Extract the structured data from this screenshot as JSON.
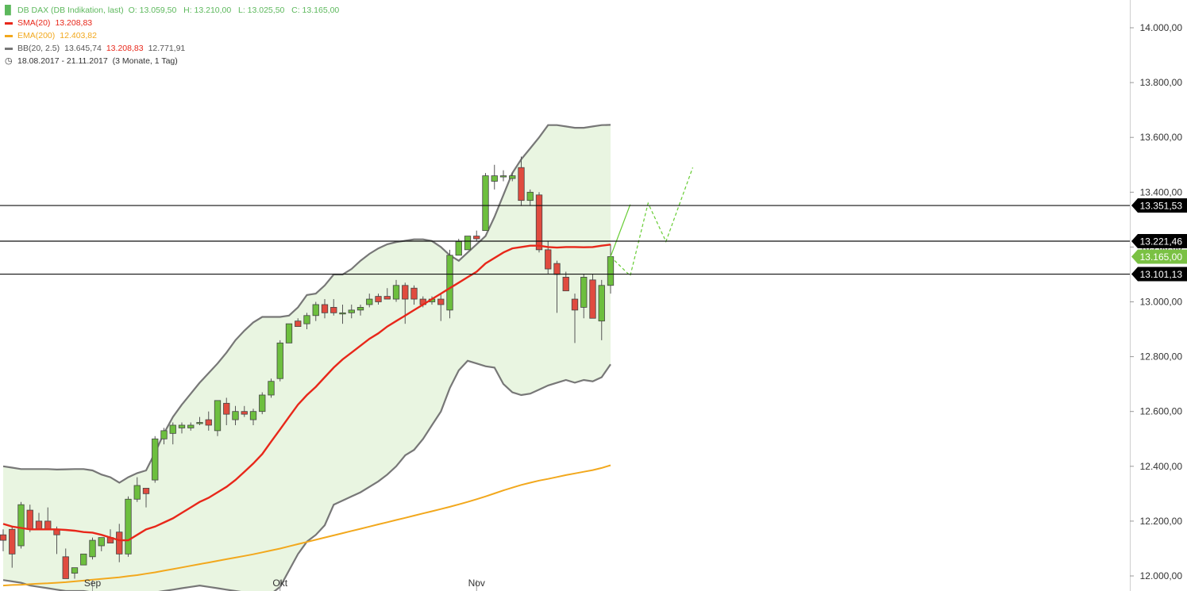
{
  "legend": {
    "instrument": {
      "name": "DB DAX (DB Indikation, last)",
      "ohlc": "O: 13.059,50   H: 13.210,00   L: 13.025,50   C: 13.165,00",
      "color": "#5cb85c"
    },
    "sma": {
      "label": "SMA(20)",
      "value": "13.208,83",
      "color": "#e8271a"
    },
    "ema": {
      "label": "EMA(200)",
      "value": "12.403,82",
      "color": "#f2a81d"
    },
    "bb": {
      "label": "BB(20, 2.5)",
      "upper": "13.645,74",
      "middle": "13.208,83",
      "lower": "12.771,91",
      "color": "#777777"
    },
    "period": {
      "range": "18.08.2017 - 21.11.2017",
      "span": "(3 Monate, 1 Tag)"
    }
  },
  "chart_data": {
    "type": "candlestick",
    "y_range": [
      11950,
      14120
    ],
    "y_ticks": [
      {
        "value": 12000,
        "label": "12.000,00"
      },
      {
        "value": 12200,
        "label": "12.200,00"
      },
      {
        "value": 12400,
        "label": "12.400,00"
      },
      {
        "value": 12600,
        "label": "12.600,00"
      },
      {
        "value": 12800,
        "label": "12.800,00"
      },
      {
        "value": 13000,
        "label": "13.000,00"
      },
      {
        "value": 13200,
        "label": "13.200,00"
      },
      {
        "value": 13400,
        "label": "13.400,00"
      },
      {
        "value": 13600,
        "label": "13.600,00"
      },
      {
        "value": 13800,
        "label": "13.800,00"
      },
      {
        "value": 14000,
        "label": "14.000,00"
      }
    ],
    "x_labels": [
      {
        "index": 10,
        "label": "Sep"
      },
      {
        "index": 31,
        "label": "Okt"
      },
      {
        "index": 53,
        "label": "Nov"
      }
    ],
    "candles": [
      {
        "o": 12150,
        "h": 12170,
        "l": 12090,
        "c": 12130
      },
      {
        "o": 12170,
        "h": 12180,
        "l": 12030,
        "c": 12080
      },
      {
        "o": 12110,
        "h": 12270,
        "l": 12100,
        "c": 12260
      },
      {
        "o": 12240,
        "h": 12260,
        "l": 12160,
        "c": 12170
      },
      {
        "o": 12200,
        "h": 12230,
        "l": 12170,
        "c": 12170
      },
      {
        "o": 12200,
        "h": 12250,
        "l": 12170,
        "c": 12170
      },
      {
        "o": 12170,
        "h": 12180,
        "l": 12080,
        "c": 12150
      },
      {
        "o": 12070,
        "h": 12100,
        "l": 11990,
        "c": 11990
      },
      {
        "o": 12010,
        "h": 12030,
        "l": 11990,
        "c": 12030
      },
      {
        "o": 12040,
        "h": 12080,
        "l": 12040,
        "c": 12080
      },
      {
        "o": 12070,
        "h": 12140,
        "l": 12060,
        "c": 12130
      },
      {
        "o": 12110,
        "h": 12140,
        "l": 12090,
        "c": 12140
      },
      {
        "o": 12140,
        "h": 12170,
        "l": 12130,
        "c": 12120
      },
      {
        "o": 12160,
        "h": 12190,
        "l": 12050,
        "c": 12080
      },
      {
        "o": 12080,
        "h": 12290,
        "l": 12070,
        "c": 12280
      },
      {
        "o": 12280,
        "h": 12360,
        "l": 12270,
        "c": 12330
      },
      {
        "o": 12320,
        "h": 12320,
        "l": 12250,
        "c": 12300
      },
      {
        "o": 12350,
        "h": 12510,
        "l": 12340,
        "c": 12500
      },
      {
        "o": 12500,
        "h": 12540,
        "l": 12480,
        "c": 12530
      },
      {
        "o": 12520,
        "h": 12560,
        "l": 12480,
        "c": 12550
      },
      {
        "o": 12540,
        "h": 12560,
        "l": 12520,
        "c": 12550
      },
      {
        "o": 12540,
        "h": 12560,
        "l": 12530,
        "c": 12550
      },
      {
        "o": 12560,
        "h": 12580,
        "l": 12550,
        "c": 12560
      },
      {
        "o": 12570,
        "h": 12600,
        "l": 12530,
        "c": 12550
      },
      {
        "o": 12530,
        "h": 12640,
        "l": 12510,
        "c": 12640
      },
      {
        "o": 12630,
        "h": 12650,
        "l": 12550,
        "c": 12590
      },
      {
        "o": 12570,
        "h": 12620,
        "l": 12550,
        "c": 12600
      },
      {
        "o": 12600,
        "h": 12620,
        "l": 12580,
        "c": 12590
      },
      {
        "o": 12570,
        "h": 12610,
        "l": 12550,
        "c": 12600
      },
      {
        "o": 12600,
        "h": 12670,
        "l": 12590,
        "c": 12660
      },
      {
        "o": 12660,
        "h": 12720,
        "l": 12650,
        "c": 12710
      },
      {
        "o": 12720,
        "h": 12860,
        "l": 12710,
        "c": 12850
      },
      {
        "o": 12850,
        "h": 12920,
        "l": 12850,
        "c": 12920
      },
      {
        "o": 12930,
        "h": 12940,
        "l": 12910,
        "c": 12910
      },
      {
        "o": 12920,
        "h": 12960,
        "l": 12900,
        "c": 12950
      },
      {
        "o": 12950,
        "h": 13000,
        "l": 12930,
        "c": 12990
      },
      {
        "o": 12990,
        "h": 13010,
        "l": 12940,
        "c": 12960
      },
      {
        "o": 12980,
        "h": 13010,
        "l": 12950,
        "c": 12960
      },
      {
        "o": 12960,
        "h": 12990,
        "l": 12920,
        "c": 12960
      },
      {
        "o": 12960,
        "h": 12990,
        "l": 12940,
        "c": 12970
      },
      {
        "o": 12970,
        "h": 12990,
        "l": 12950,
        "c": 12980
      },
      {
        "o": 12990,
        "h": 13030,
        "l": 12980,
        "c": 13010
      },
      {
        "o": 13020,
        "h": 13030,
        "l": 12990,
        "c": 13000
      },
      {
        "o": 13020,
        "h": 13050,
        "l": 13010,
        "c": 13010
      },
      {
        "o": 13010,
        "h": 13080,
        "l": 13000,
        "c": 13060
      },
      {
        "o": 13060,
        "h": 13070,
        "l": 12920,
        "c": 13010
      },
      {
        "o": 13050,
        "h": 13060,
        "l": 12990,
        "c": 13010
      },
      {
        "o": 13010,
        "h": 13020,
        "l": 12980,
        "c": 12990
      },
      {
        "o": 13000,
        "h": 13020,
        "l": 12990,
        "c": 13010
      },
      {
        "o": 13010,
        "h": 13030,
        "l": 12930,
        "c": 12990
      },
      {
        "o": 12970,
        "h": 13190,
        "l": 12940,
        "c": 13170
      },
      {
        "o": 13170,
        "h": 13230,
        "l": 13170,
        "c": 13220
      },
      {
        "o": 13190,
        "h": 13240,
        "l": 13190,
        "c": 13240
      },
      {
        "o": 13240,
        "h": 13260,
        "l": 13220,
        "c": 13230
      },
      {
        "o": 13260,
        "h": 13470,
        "l": 13260,
        "c": 13460
      },
      {
        "o": 13440,
        "h": 13500,
        "l": 13410,
        "c": 13460
      },
      {
        "o": 13460,
        "h": 13480,
        "l": 13440,
        "c": 13460
      },
      {
        "o": 13450,
        "h": 13470,
        "l": 13440,
        "c": 13460
      },
      {
        "o": 13490,
        "h": 13530,
        "l": 13350,
        "c": 13370
      },
      {
        "o": 13370,
        "h": 13410,
        "l": 13350,
        "c": 13400
      },
      {
        "o": 13390,
        "h": 13400,
        "l": 13180,
        "c": 13190
      },
      {
        "o": 13190,
        "h": 13220,
        "l": 13100,
        "c": 13120
      },
      {
        "o": 13140,
        "h": 13150,
        "l": 12960,
        "c": 13100
      },
      {
        "o": 13090,
        "h": 13110,
        "l": 13040,
        "c": 13040
      },
      {
        "o": 13010,
        "h": 13030,
        "l": 12850,
        "c": 12970
      },
      {
        "o": 12980,
        "h": 13100,
        "l": 12940,
        "c": 13090
      },
      {
        "o": 13080,
        "h": 13100,
        "l": 12940,
        "c": 12940
      },
      {
        "o": 12930,
        "h": 13080,
        "l": 12860,
        "c": 13060
      },
      {
        "o": 13060,
        "h": 13210,
        "l": 13030,
        "c": 13165
      }
    ],
    "sma20": [
      12190,
      12180,
      12175,
      12170,
      12170,
      12170,
      12170,
      12168,
      12165,
      12160,
      12158,
      12150,
      12140,
      12130,
      12130,
      12150,
      12170,
      12180,
      12195,
      12210,
      12230,
      12250,
      12270,
      12285,
      12305,
      12325,
      12350,
      12380,
      12410,
      12445,
      12490,
      12535,
      12580,
      12625,
      12660,
      12690,
      12725,
      12760,
      12790,
      12815,
      12840,
      12865,
      12885,
      12910,
      12930,
      12950,
      12970,
      12990,
      13010,
      13030,
      13050,
      13070,
      13090,
      13110,
      13140,
      13160,
      13180,
      13195,
      13200,
      13205,
      13205,
      13200,
      13198,
      13200,
      13200,
      13199,
      13200,
      13205,
      13208.83
    ],
    "ema200": [
      11965,
      11967,
      11968,
      11970,
      11972,
      11973,
      11975,
      11977,
      11980,
      11983,
      11986,
      11989,
      11992,
      11995,
      11999,
      12003,
      12008,
      12013,
      12019,
      12025,
      12031,
      12037,
      12043,
      12049,
      12055,
      12061,
      12067,
      12073,
      12079,
      12086,
      12093,
      12100,
      12108,
      12116,
      12124,
      12132,
      12140,
      12148,
      12156,
      12164,
      12172,
      12180,
      12188,
      12196,
      12204,
      12212,
      12220,
      12228,
      12236,
      12244,
      12252,
      12261,
      12270,
      12280,
      12290,
      12301,
      12312,
      12322,
      12332,
      12340,
      12348,
      12354,
      12361,
      12368,
      12374,
      12380,
      12386,
      12394,
      12403.82
    ],
    "bb_upper": [
      12400,
      12395,
      12390,
      12390,
      12390,
      12390,
      12388,
      12389,
      12390,
      12390,
      12385,
      12370,
      12360,
      12340,
      12360,
      12375,
      12385,
      12450,
      12520,
      12580,
      12625,
      12665,
      12705,
      12740,
      12775,
      12815,
      12860,
      12895,
      12925,
      12945,
      12945,
      12945,
      12950,
      12980,
      13025,
      13030,
      13060,
      13100,
      13100,
      13120,
      13150,
      13175,
      13195,
      13210,
      13218,
      13223,
      13228,
      13228,
      13222,
      13200,
      13170,
      13150,
      13180,
      13210,
      13240,
      13310,
      13390,
      13470,
      13520,
      13560,
      13600,
      13645,
      13645,
      13640,
      13635,
      13635,
      13640,
      13645,
      13645.74
    ],
    "bb_lower": [
      11985,
      11980,
      11975,
      11965,
      11960,
      11955,
      11950,
      11945,
      11945,
      11945,
      11940,
      11930,
      11920,
      11910,
      11910,
      11920,
      11930,
      11940,
      11945,
      11950,
      11955,
      11960,
      11965,
      11960,
      11955,
      11950,
      11945,
      11940,
      11935,
      11930,
      11935,
      11960,
      12020,
      12080,
      12125,
      12150,
      12185,
      12260,
      12275,
      12290,
      12305,
      12325,
      12345,
      12370,
      12400,
      12440,
      12460,
      12500,
      12550,
      12600,
      12685,
      12750,
      12785,
      12775,
      12765,
      12760,
      12700,
      12670,
      12660,
      12665,
      12680,
      12695,
      12705,
      12715,
      12705,
      12715,
      12710,
      12725,
      12771.91
    ],
    "horizontal_lines": [
      {
        "value": 13351.53,
        "label": "13.351,53",
        "bg": "#000000"
      },
      {
        "value": 13221.46,
        "label": "13.221,46",
        "bg": "#000000"
      },
      {
        "value": 13101.13,
        "label": "13.101,13",
        "bg": "#000000"
      }
    ],
    "last_price": {
      "value": 13165.0,
      "label": "13.165,00",
      "bg": "#7ac143"
    },
    "projections": {
      "solid": [
        [
          68,
          13165
        ],
        [
          70.2,
          13355
        ]
      ],
      "dashed_up": [
        [
          68,
          13165
        ],
        [
          70.2,
          13095
        ],
        [
          72.2,
          13360
        ],
        [
          74.2,
          13220
        ],
        [
          77.2,
          13490
        ]
      ]
    },
    "colors": {
      "up": "#6dbf3e",
      "down": "#e04b3f",
      "band_fill": "#e9f5e1",
      "bb": "#777777",
      "sma": "#e8271a",
      "ema": "#f2a81d",
      "projection": "#66cc33"
    }
  }
}
